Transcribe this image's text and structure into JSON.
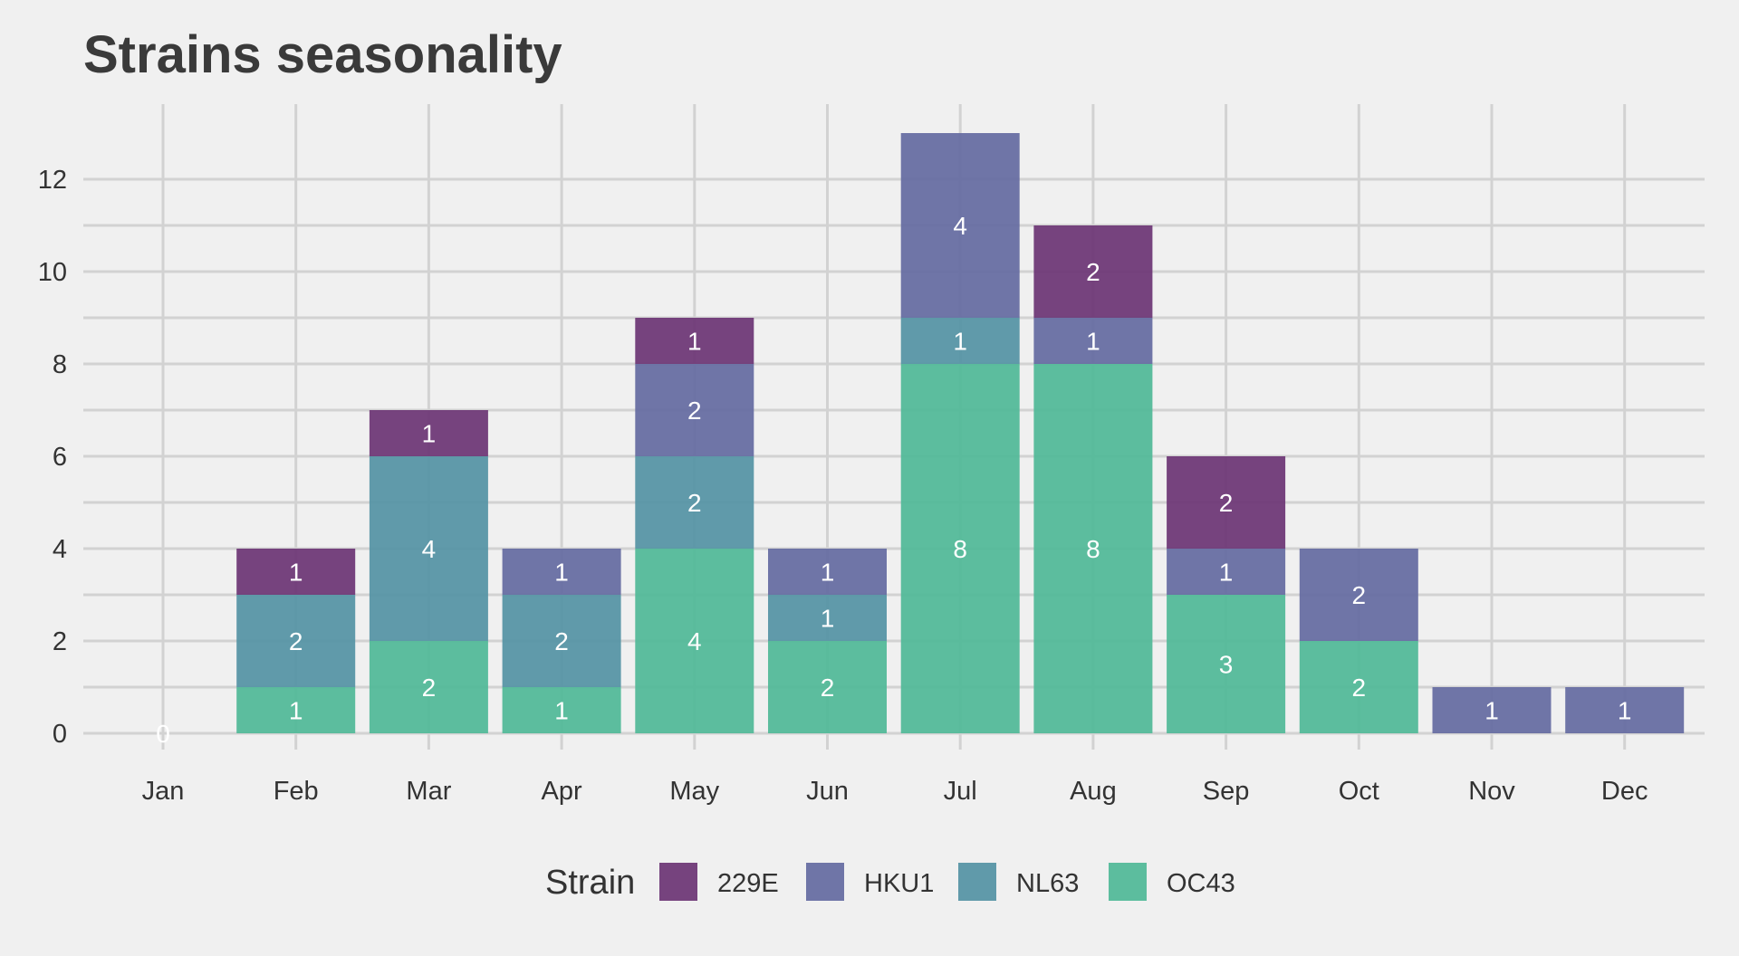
{
  "chart_data": {
    "type": "bar",
    "stacked": true,
    "title": "Strains seasonality",
    "xlabel": "",
    "ylabel": "",
    "categories": [
      "Jan",
      "Feb",
      "Mar",
      "Apr",
      "May",
      "Jun",
      "Jul",
      "Aug",
      "Sep",
      "Oct",
      "Nov",
      "Dec"
    ],
    "ylim": [
      0,
      13.6
    ],
    "yticks": [
      0,
      2,
      4,
      6,
      8,
      10,
      12
    ],
    "grid": true,
    "legend_title": "Strain",
    "legend_position": "bottom",
    "total_labels": [
      "0",
      "",
      "",
      "",
      "",
      "",
      "",
      "",
      "",
      "",
      "",
      ""
    ],
    "series": [
      {
        "name": "OC43",
        "color": "#4fb897",
        "values": [
          0,
          1,
          2,
          1,
          4,
          2,
          8,
          8,
          3,
          2,
          0,
          0
        ]
      },
      {
        "name": "NL63",
        "color": "#5492a4",
        "values": [
          0,
          2,
          4,
          2,
          2,
          1,
          1,
          0,
          0,
          0,
          0,
          0
        ]
      },
      {
        "name": "HKU1",
        "color": "#646aa1",
        "values": [
          0,
          0,
          0,
          1,
          2,
          1,
          4,
          1,
          1,
          2,
          1,
          1
        ]
      },
      {
        "name": "229E",
        "color": "#6b3474",
        "values": [
          0,
          1,
          1,
          0,
          1,
          0,
          0,
          2,
          2,
          0,
          0,
          0
        ]
      }
    ],
    "legend_order": [
      "229E",
      "HKU1",
      "NL63",
      "OC43"
    ]
  }
}
